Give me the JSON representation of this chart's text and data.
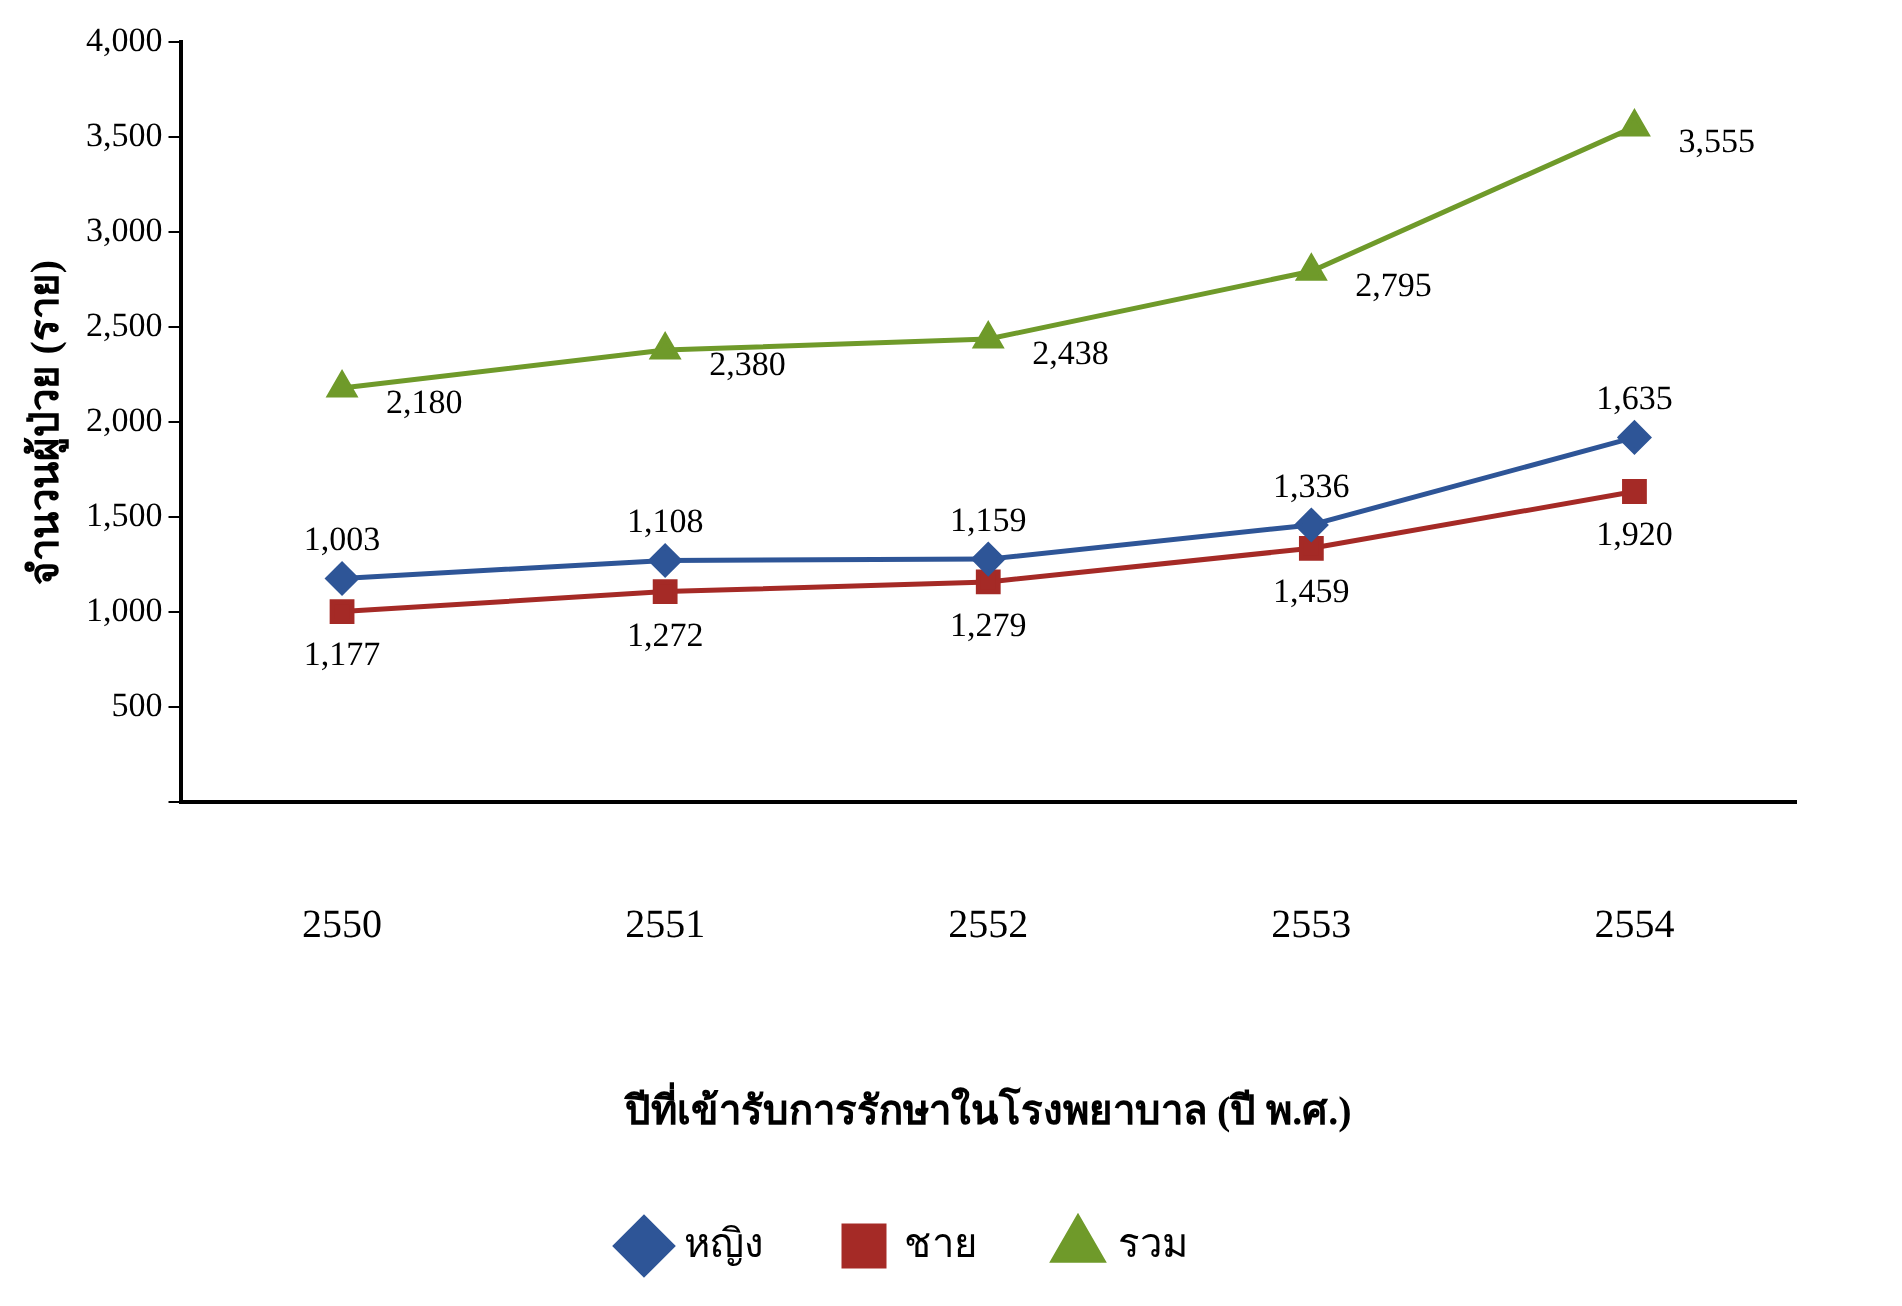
{
  "chart_data": {
    "type": "line",
    "xlabel": "ปีที่เข้ารับการรักษาในโรงพยาบาล (ปี พ.ศ.)",
    "ylabel": "จำนวนผู้ป่วย (ราย)",
    "categories": [
      "2550",
      "2551",
      "2552",
      "2553",
      "2554"
    ],
    "series": [
      {
        "name": "หญิง",
        "color": "#2e5597",
        "marker": "diamond",
        "values": [
          1177,
          1272,
          1279,
          1459,
          1920
        ]
      },
      {
        "name": "ชาย",
        "color": "#a52a26",
        "marker": "square",
        "values": [
          1003,
          1108,
          1159,
          1336,
          1635
        ]
      },
      {
        "name": "รวม",
        "color": "#6f9a2a",
        "marker": "triangle",
        "values": [
          2180,
          2380,
          2438,
          2795,
          3555
        ],
        "value_labels": [
          "2,180",
          "2,380",
          "2,438",
          "2,795",
          "3,555"
        ]
      }
    ],
    "annotations": [
      {
        "text": "1,003",
        "x": "2550",
        "y": 1177
      },
      {
        "text": "1,108",
        "x": "2551",
        "y": 1272
      },
      {
        "text": "1,159",
        "x": "2552",
        "y": 1279
      },
      {
        "text": "1,336",
        "x": "2553",
        "y": 1459
      },
      {
        "text": "1,635",
        "x": "2554",
        "y": 1920
      },
      {
        "text": "1,177",
        "x": "2550",
        "y": 1003
      },
      {
        "text": "1,272",
        "x": "2551",
        "y": 1108
      },
      {
        "text": "1,279",
        "x": "2552",
        "y": 1159
      },
      {
        "text": "1,459",
        "x": "2553",
        "y": 1336
      },
      {
        "text": "1,920",
        "x": "2554",
        "y": 1635
      }
    ],
    "ylim": [
      0,
      4000
    ],
    "yticks": [
      {
        "value": 0,
        "label": null
      },
      500,
      {
        "value": 1000,
        "label": "1,000"
      },
      {
        "value": 1500,
        "label": "1,500"
      },
      {
        "value": 2000,
        "label": "2,000"
      },
      {
        "value": 2500,
        "label": "2,500"
      },
      {
        "value": 3000,
        "label": "3,000"
      },
      {
        "value": 3500,
        "label": "3,500"
      },
      {
        "value": 4000,
        "label": "4,000"
      }
    ],
    "grid": false,
    "legend": "bottom",
    "line_style": "solid"
  }
}
